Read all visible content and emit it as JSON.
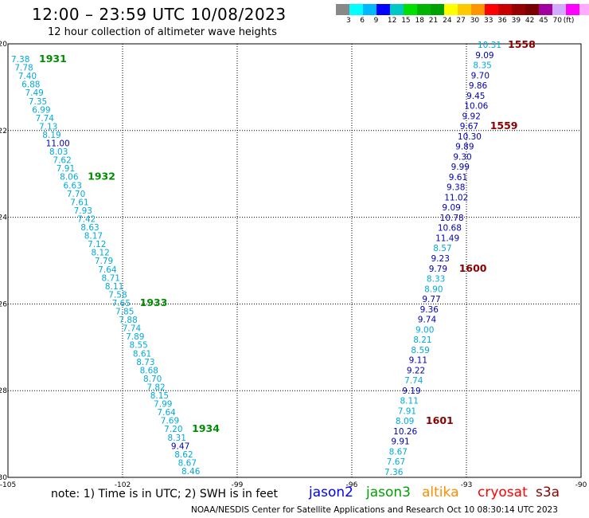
{
  "header": {
    "title": "12:00 – 23:59 UTC 10/08/2023",
    "subtitle": "12 hour collection of altimeter wave heights"
  },
  "colorbar": {
    "colors": [
      "#888888",
      "#00ffff",
      "#00b8ff",
      "#0000ff",
      "#00c8c8",
      "#00e000",
      "#00b400",
      "#00a000",
      "#ffff00",
      "#ffc800",
      "#ff9600",
      "#ff0000",
      "#c80000",
      "#960000",
      "#780000",
      "#a000a0",
      "#d2aaff",
      "#ff00ff",
      "#ffaaff",
      "#000000"
    ],
    "labels": [
      "3",
      "6",
      "9",
      "12",
      "15",
      "18",
      "21",
      "24",
      "27",
      "30",
      "33",
      "36",
      "39",
      "42",
      "45",
      "70"
    ],
    "unit": "(ft)"
  },
  "map_axes": {
    "x_ticks": [
      "-105",
      "-102",
      "-99",
      "-96",
      "-93",
      "-90"
    ],
    "y_ticks": [
      "-20",
      "-22",
      "-24",
      "-26",
      "-28",
      "-30"
    ]
  },
  "track_left": {
    "color_a": "#00aad8",
    "color_b": "#0000b4",
    "values": [
      "7.38",
      "7.78",
      "7.40",
      "6.88",
      "7.49",
      "7.35",
      "6.99",
      "7.74",
      "7.13",
      "8.19",
      "11.00",
      "8.03",
      "7.62",
      "7.91",
      "8.06",
      "6.63",
      "7.70",
      "7.61",
      "7.93",
      "7.42",
      "8.63",
      "8.17",
      "7.12",
      "8.12",
      "7.79",
      "7.64",
      "8.71",
      "8.11",
      "7.58",
      "7.65",
      "7.85",
      "7.88",
      "7.74",
      "7.89",
      "8.55",
      "8.61",
      "8.73",
      "8.68",
      "8.70",
      "7.82",
      "8.15",
      "7.99",
      "7.64",
      "7.69",
      "7.20",
      "8.31",
      "9.47",
      "8.62",
      "8.67",
      "8.46"
    ],
    "dark": [
      10,
      46
    ],
    "times": [
      "1931",
      "1932",
      "1933",
      "1934"
    ],
    "time_color": "#008c00"
  },
  "track_right": {
    "values": [
      "10.31",
      "9.09",
      "8.35",
      "9.70",
      "9.86",
      "9.45",
      "10.06",
      "9.92",
      "9.67",
      "10.30",
      "9.89",
      "9.30",
      "9.99",
      "9.61",
      "9.38",
      "11.02",
      "9.09",
      "10.78",
      "10.68",
      "11.49",
      "8.57",
      "9.23",
      "9.79",
      "8.33",
      "8.90",
      "9.77",
      "9.36",
      "9.74",
      "9.00",
      "8.21",
      "8.59",
      "9.11",
      "9.22",
      "7.74",
      "9.19",
      "8.11",
      "7.91",
      "8.09",
      "10.26",
      "9.91",
      "8.67",
      "7.67",
      "7.36"
    ],
    "dark": [
      1,
      3,
      4,
      5,
      6,
      7,
      8,
      9,
      10,
      11,
      12,
      13,
      14,
      15,
      16,
      17,
      18,
      19,
      21,
      22,
      25,
      26,
      27,
      31,
      32,
      34,
      38,
      39
    ],
    "times": [
      "1558",
      "1559",
      "1600",
      "1601"
    ],
    "time_color": "#8b0000"
  },
  "notes": {
    "note_line": "note:  1) Time is in UTC;  2) SWH is in feet",
    "satellites": [
      {
        "name": "jason2",
        "color": "#0000ff"
      },
      {
        "name": "jason3",
        "color": "#00a000"
      },
      {
        "name": "altika",
        "color": "#ff8c00"
      },
      {
        "name": "cryosat",
        "color": "#ff0000"
      },
      {
        "name": "s3a",
        "color": "#8b0000"
      }
    ],
    "footer": "NOAA/NESDIS Center for Satellite Applications and Research    Oct 10 08:30:14 UTC 2023"
  }
}
